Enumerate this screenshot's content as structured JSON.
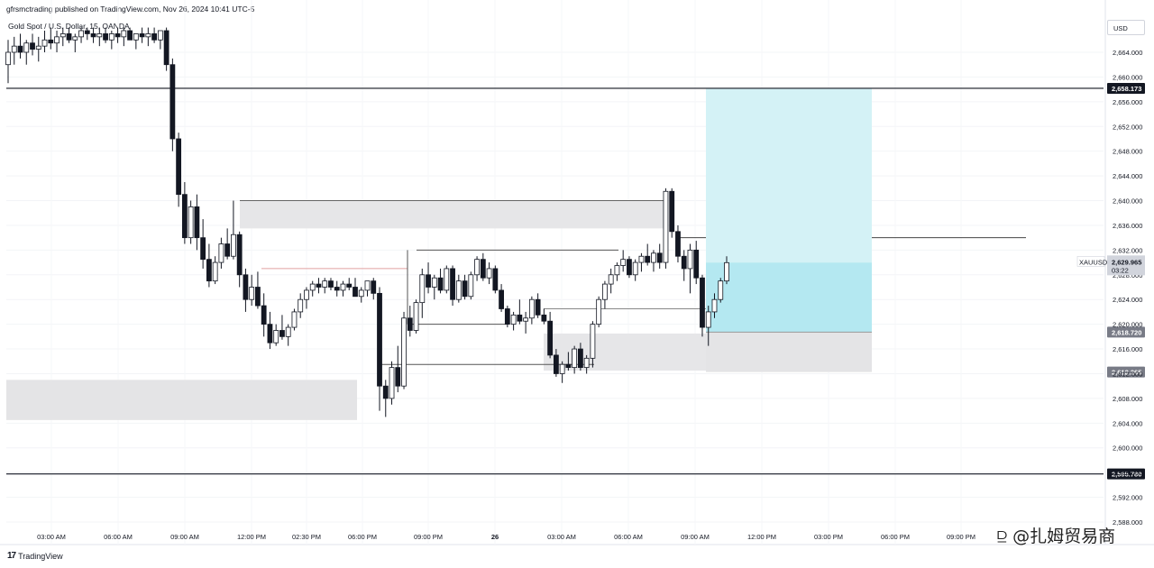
{
  "header": {
    "published_caption": "gfrsmctrading published on TradingView.com, Nov 26, 2024 10:41 UTC-5",
    "symbol_line": "Gold Spot / U.S. Dollar, 15, OANDA"
  },
  "currency_button": "USD",
  "footer": {
    "brand_icon": "tradingview-logo-icon",
    "brand_text": "TradingView"
  },
  "watermark": "⫒ @扎姆贸易商",
  "chart_data": {
    "type": "candlestick",
    "symbol": "XAUUSD",
    "ylim": [
      2588,
      2668
    ],
    "price_axis_ticks": [
      "2,664.000",
      "2,660.000",
      "2,656.000",
      "2,652.000",
      "2,648.000",
      "2,644.000",
      "2,640.000",
      "2,636.000",
      "2,632.000",
      "2,628.000",
      "2,624.000",
      "2,620.000",
      "2,616.000",
      "2,612.000",
      "2,608.000",
      "2,604.000",
      "2,600.000",
      "2,596.000",
      "2,592.000",
      "2,588.000"
    ],
    "time_axis_labels": [
      "03:00 AM",
      "06:00 AM",
      "09:00 AM",
      "12:00 PM",
      "02:30 PM",
      "06:00 PM",
      "09:00 PM",
      "26",
      "03:00 AM",
      "06:00 AM",
      "09:00 AM",
      "12:00 PM",
      "03:00 PM",
      "06:00 PM",
      "09:00 PM"
    ],
    "current_price": {
      "label": "XAUUSD",
      "value": "2,629.965",
      "countdown": "03:22"
    },
    "horizontal_levels": [
      {
        "price": 2658.173,
        "label": "2,658.173",
        "style": "black"
      },
      {
        "price": 2595.78,
        "label": "2,595.780",
        "style": "black"
      },
      {
        "price": 2618.72,
        "label": "2,618.720",
        "style": "gray"
      },
      {
        "price": 2612.265,
        "label": "2,612.265",
        "style": "gray"
      }
    ],
    "position_tool": {
      "entry": 2618.72,
      "target": 2658.173,
      "stop": 2612.265
    },
    "candles": [
      [
        2662.0,
        2666.0,
        2659.0,
        2664.0
      ],
      [
        2664.0,
        2666.5,
        2662.0,
        2665.0
      ],
      [
        2665.0,
        2667.0,
        2663.0,
        2664.0
      ],
      [
        2664.0,
        2666.0,
        2662.0,
        2665.5
      ],
      [
        2665.5,
        2667.0,
        2663.5,
        2664.5
      ],
      [
        2664.5,
        2666.5,
        2662.5,
        2665.0
      ],
      [
        2665.0,
        2667.5,
        2664.0,
        2666.0
      ],
      [
        2666.0,
        2668.0,
        2664.5,
        2665.5
      ],
      [
        2665.5,
        2667.5,
        2664.0,
        2666.5
      ],
      [
        2666.5,
        2668.0,
        2665.0,
        2667.0
      ],
      [
        2667.0,
        2668.0,
        2665.5,
        2666.0
      ],
      [
        2666.0,
        2667.0,
        2664.0,
        2666.5
      ],
      [
        2666.5,
        2668.0,
        2665.5,
        2667.5
      ],
      [
        2667.5,
        2668.0,
        2666.0,
        2667.0
      ],
      [
        2667.0,
        2668.0,
        2665.5,
        2666.5
      ],
      [
        2666.5,
        2668.0,
        2665.0,
        2667.0
      ],
      [
        2667.0,
        2668.0,
        2665.5,
        2666.0
      ],
      [
        2666.0,
        2667.5,
        2664.5,
        2667.0
      ],
      [
        2667.0,
        2668.0,
        2665.5,
        2666.5
      ],
      [
        2666.5,
        2668.0,
        2665.0,
        2667.5
      ],
      [
        2667.5,
        2668.0,
        2666.0,
        2666.0
      ],
      [
        2666.0,
        2667.0,
        2664.5,
        2667.0
      ],
      [
        2667.0,
        2668.0,
        2665.5,
        2666.5
      ],
      [
        2666.5,
        2668.0,
        2665.0,
        2667.0
      ],
      [
        2667.0,
        2668.0,
        2665.5,
        2666.0
      ],
      [
        2666.0,
        2667.5,
        2664.5,
        2667.5
      ],
      [
        2667.5,
        2668.0,
        2661.0,
        2662.0
      ],
      [
        2662.0,
        2663.0,
        2648.0,
        2650.0
      ],
      [
        2650.0,
        2651.0,
        2639.0,
        2641.0
      ],
      [
        2641.0,
        2643.0,
        2633.0,
        2634.0
      ],
      [
        2634.0,
        2640.0,
        2633.0,
        2639.0
      ],
      [
        2639.0,
        2641.0,
        2632.0,
        2634.0
      ],
      [
        2634.0,
        2637.0,
        2629.0,
        2630.5
      ],
      [
        2630.5,
        2633.0,
        2626.0,
        2627.0
      ],
      [
        2627.0,
        2631.0,
        2626.5,
        2630.0
      ],
      [
        2630.0,
        2634.0,
        2629.0,
        2633.0
      ],
      [
        2633.0,
        2635.5,
        2630.5,
        2631.0
      ],
      [
        2631.0,
        2640.0,
        2630.5,
        2634.5
      ],
      [
        2634.5,
        2635.0,
        2626.0,
        2628.0
      ],
      [
        2628.0,
        2629.0,
        2622.0,
        2624.0
      ],
      [
        2624.0,
        2628.0,
        2623.0,
        2626.0
      ],
      [
        2626.0,
        2628.5,
        2622.5,
        2623.0
      ],
      [
        2623.0,
        2625.0,
        2618.0,
        2620.0
      ],
      [
        2620.0,
        2622.0,
        2616.0,
        2617.0
      ],
      [
        2617.0,
        2620.0,
        2616.5,
        2619.0
      ],
      [
        2619.0,
        2621.5,
        2617.5,
        2618.0
      ],
      [
        2618.0,
        2620.0,
        2616.5,
        2619.5
      ],
      [
        2619.5,
        2622.5,
        2619.0,
        2622.0
      ],
      [
        2622.0,
        2625.0,
        2621.0,
        2624.0
      ],
      [
        2624.0,
        2626.0,
        2622.5,
        2625.5
      ],
      [
        2625.5,
        2627.0,
        2624.5,
        2626.5
      ],
      [
        2626.5,
        2627.5,
        2625.0,
        2626.0
      ],
      [
        2626.0,
        2627.5,
        2625.0,
        2627.0
      ],
      [
        2627.0,
        2627.5,
        2625.5,
        2626.0
      ],
      [
        2626.0,
        2627.0,
        2624.5,
        2625.5
      ],
      [
        2625.5,
        2627.0,
        2624.5,
        2626.5
      ],
      [
        2626.5,
        2627.5,
        2625.5,
        2626.0
      ],
      [
        2626.0,
        2627.5,
        2625.0,
        2624.5
      ],
      [
        2624.5,
        2626.0,
        2623.5,
        2625.5
      ],
      [
        2625.5,
        2627.0,
        2624.5,
        2627.0
      ],
      [
        2627.0,
        2627.5,
        2624.0,
        2625.0
      ],
      [
        2625.0,
        2626.0,
        2606.0,
        2610.0
      ],
      [
        2610.0,
        2611.0,
        2605.0,
        2608.0
      ],
      [
        2608.0,
        2614.0,
        2607.0,
        2613.0
      ],
      [
        2613.0,
        2616.5,
        2609.0,
        2610.0
      ],
      [
        2610.0,
        2622.0,
        2609.5,
        2621.0
      ],
      [
        2621.0,
        2623.0,
        2618.0,
        2619.0
      ],
      [
        2619.0,
        2624.0,
        2618.5,
        2623.5
      ],
      [
        2623.5,
        2629.0,
        2621.0,
        2628.0
      ],
      [
        2628.0,
        2630.0,
        2625.0,
        2626.0
      ],
      [
        2626.0,
        2628.0,
        2624.0,
        2627.5
      ],
      [
        2627.5,
        2629.0,
        2625.0,
        2625.5
      ],
      [
        2625.5,
        2629.5,
        2625.0,
        2629.0
      ],
      [
        2629.0,
        2629.5,
        2623.0,
        2624.0
      ],
      [
        2624.0,
        2628.0,
        2623.5,
        2627.0
      ],
      [
        2627.0,
        2628.0,
        2624.0,
        2624.5
      ],
      [
        2624.5,
        2628.5,
        2624.0,
        2628.0
      ],
      [
        2628.0,
        2631.0,
        2627.0,
        2630.5
      ],
      [
        2630.5,
        2631.5,
        2627.0,
        2627.5
      ],
      [
        2627.5,
        2630.0,
        2626.5,
        2629.0
      ],
      [
        2629.0,
        2629.5,
        2625.0,
        2625.5
      ],
      [
        2625.5,
        2626.5,
        2622.0,
        2622.5
      ],
      [
        2622.5,
        2623.0,
        2619.5,
        2620.0
      ],
      [
        2620.0,
        2622.0,
        2619.0,
        2621.5
      ],
      [
        2621.5,
        2624.0,
        2620.0,
        2620.5
      ],
      [
        2620.5,
        2622.0,
        2618.5,
        2621.0
      ],
      [
        2621.0,
        2624.5,
        2620.0,
        2624.0
      ],
      [
        2624.0,
        2625.0,
        2621.0,
        2621.5
      ],
      [
        2621.5,
        2622.5,
        2620.0,
        2620.5
      ],
      [
        2620.5,
        2622.0,
        2614.5,
        2615.0
      ],
      [
        2615.0,
        2616.0,
        2611.5,
        2612.0
      ],
      [
        2612.0,
        2614.0,
        2610.5,
        2613.5
      ],
      [
        2613.5,
        2615.5,
        2612.5,
        2613.0
      ],
      [
        2613.0,
        2616.5,
        2612.0,
        2616.0
      ],
      [
        2616.0,
        2617.0,
        2612.5,
        2613.0
      ],
      [
        2613.0,
        2615.0,
        2612.0,
        2614.5
      ],
      [
        2614.5,
        2620.5,
        2613.0,
        2620.0
      ],
      [
        2620.0,
        2624.5,
        2619.5,
        2624.0
      ],
      [
        2624.0,
        2627.0,
        2622.5,
        2626.5
      ],
      [
        2626.5,
        2629.0,
        2625.0,
        2628.0
      ],
      [
        2628.0,
        2630.0,
        2627.0,
        2629.5
      ],
      [
        2629.5,
        2632.0,
        2628.5,
        2630.5
      ],
      [
        2630.5,
        2631.0,
        2627.5,
        2628.0
      ],
      [
        2628.0,
        2630.5,
        2627.0,
        2630.0
      ],
      [
        2630.0,
        2631.5,
        2628.5,
        2631.0
      ],
      [
        2631.0,
        2633.0,
        2629.5,
        2630.0
      ],
      [
        2630.0,
        2632.0,
        2628.5,
        2631.5
      ],
      [
        2631.5,
        2633.0,
        2629.0,
        2630.0
      ],
      [
        2630.0,
        2642.0,
        2629.0,
        2641.5
      ],
      [
        2641.5,
        2642.0,
        2634.0,
        2635.0
      ],
      [
        2635.0,
        2636.0,
        2630.0,
        2631.0
      ],
      [
        2631.0,
        2632.0,
        2627.0,
        2629.0
      ],
      [
        2629.0,
        2633.0,
        2625.0,
        2632.0
      ],
      [
        2632.0,
        2633.5,
        2626.5,
        2627.5
      ],
      [
        2627.5,
        2628.0,
        2618.0,
        2619.5
      ],
      [
        2619.5,
        2623.0,
        2616.5,
        2622.0
      ],
      [
        2622.0,
        2625.0,
        2621.0,
        2624.0
      ],
      [
        2624.0,
        2627.5,
        2623.5,
        2627.0
      ],
      [
        2627.0,
        2631.0,
        2626.5,
        2629.965
      ]
    ],
    "grid": true,
    "legend": "none"
  }
}
